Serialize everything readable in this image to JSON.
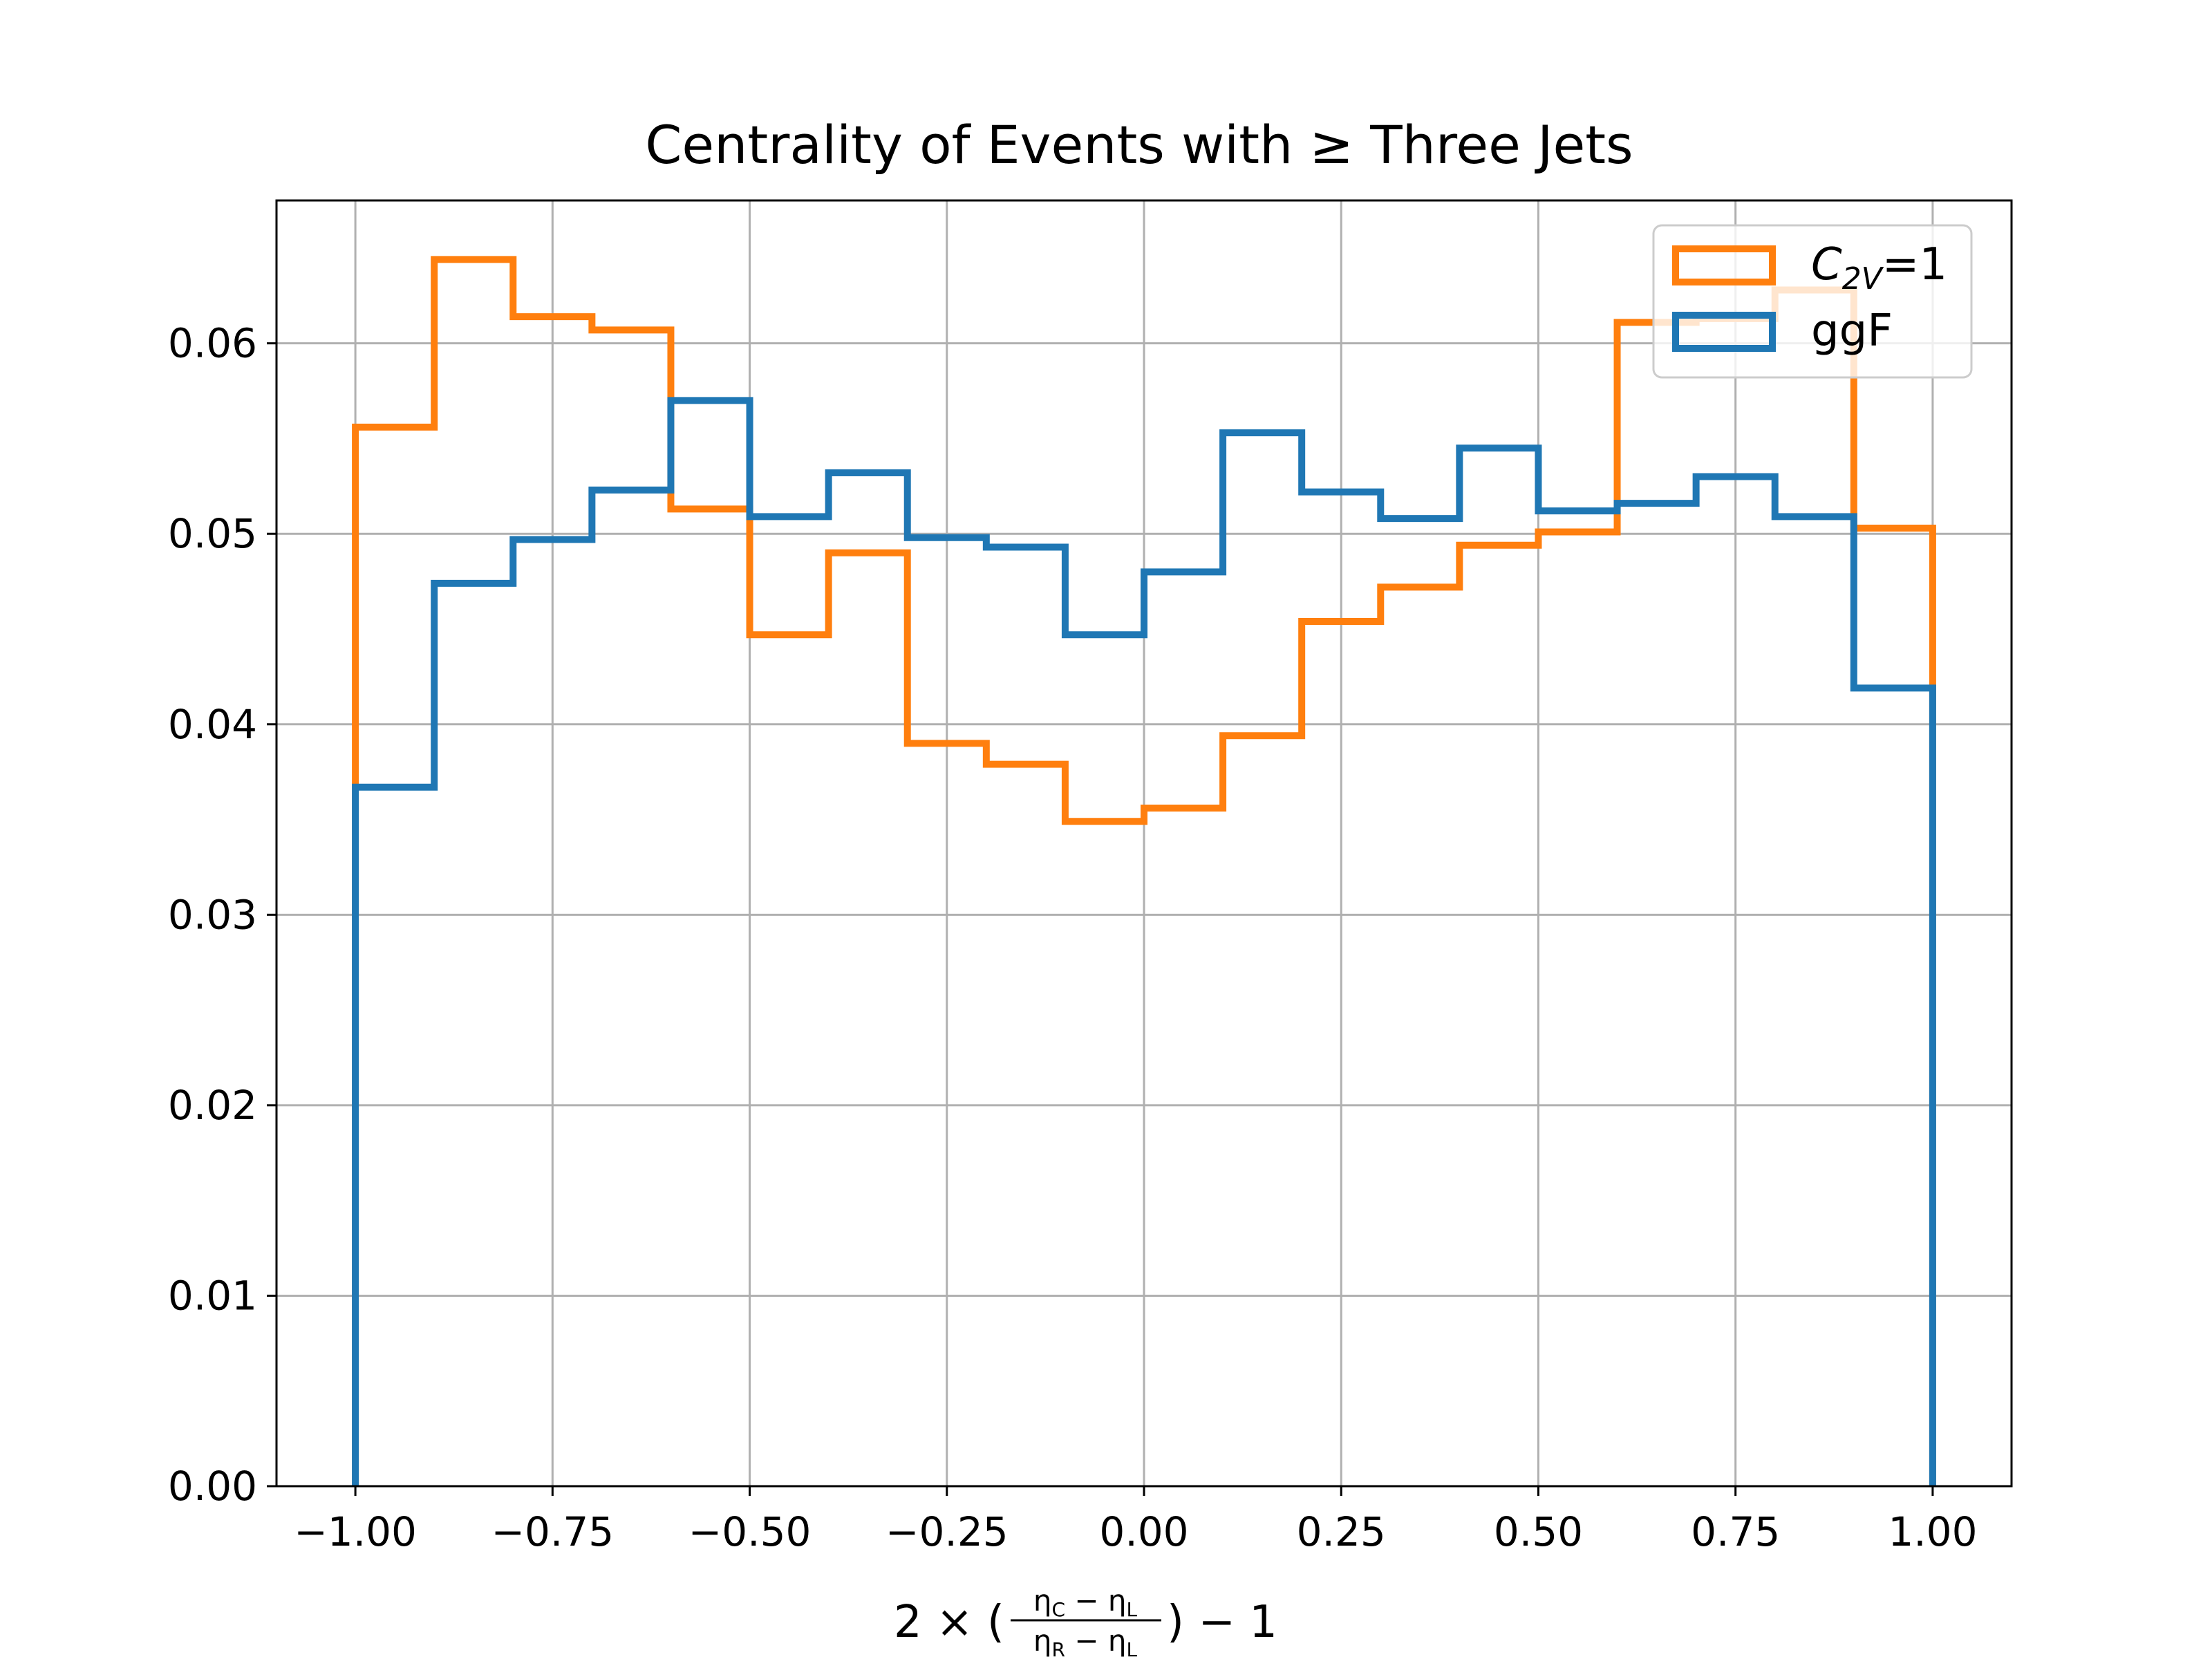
{
  "chart_data": {
    "type": "step-histogram",
    "title": "Centrality of Events with ≥ Three Jets",
    "xlabel": "2 × (ηC − ηL)/(ηR − ηL) − 1",
    "ylabel": "",
    "xlim": [
      -1.1,
      1.1
    ],
    "ylim": [
      0,
      0.0675
    ],
    "grid": true,
    "legend_position": "upper-right",
    "x_ticks": [
      -1.0,
      -0.75,
      -0.5,
      -0.25,
      0.0,
      0.25,
      0.5,
      0.75,
      1.0
    ],
    "x_tick_labels": [
      "−1.00",
      "−0.75",
      "−0.50",
      "−0.25",
      "0.00",
      "0.25",
      "0.50",
      "0.75",
      "1.00"
    ],
    "y_ticks": [
      0,
      0.01,
      0.02,
      0.03,
      0.04,
      0.05,
      0.06
    ],
    "y_tick_labels": [
      "0.00",
      "0.01",
      "0.02",
      "0.03",
      "0.04",
      "0.05",
      "0.06"
    ],
    "bin_edges": [
      -1.0,
      -0.9,
      -0.8,
      -0.7,
      -0.6,
      -0.5,
      -0.4,
      -0.3,
      -0.2,
      -0.1,
      0.0,
      0.1,
      0.2,
      0.3,
      0.4,
      0.5,
      0.6,
      0.7,
      0.8,
      0.9,
      1.0
    ],
    "series": [
      {
        "name": "C2V=1",
        "color": "#ff7f0e",
        "values": [
          0.0556,
          0.0644,
          0.0614,
          0.0607,
          0.0513,
          0.0447,
          0.049,
          0.039,
          0.0379,
          0.0349,
          0.0356,
          0.0394,
          0.0454,
          0.0472,
          0.0494,
          0.0501,
          0.0611,
          0.0613,
          0.0628,
          0.0503
        ]
      },
      {
        "name": "ggF",
        "color": "#1f77b4",
        "values": [
          0.0367,
          0.0474,
          0.0497,
          0.0523,
          0.057,
          0.0509,
          0.0532,
          0.0498,
          0.0493,
          0.0447,
          0.048,
          0.0553,
          0.0522,
          0.0508,
          0.0545,
          0.0512,
          0.0516,
          0.053,
          0.0509,
          0.0419
        ]
      }
    ]
  }
}
